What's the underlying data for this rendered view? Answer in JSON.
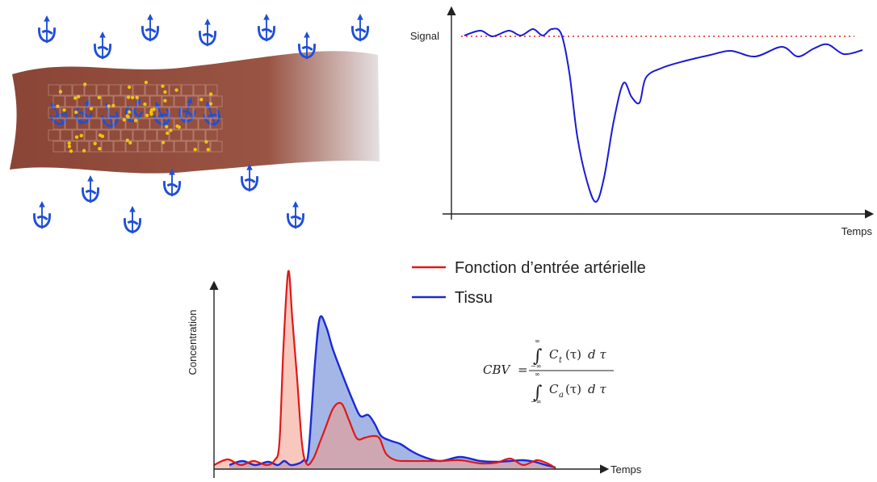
{
  "tissue_panel": {
    "icon": "spin-vector-icon",
    "colors": {
      "tissue": "#8e4a3c",
      "spin": "#1f4fd8",
      "particle": "#f2c300"
    }
  },
  "signal_chart": {
    "ylabel": "Signal",
    "xlabel": "Temps",
    "colors": {
      "signal": "#1a1ad6",
      "baseline": "#e02020"
    }
  },
  "concentration_chart": {
    "ylabel": "Concentration",
    "xlabel": "Temps",
    "colors": {
      "aif": "#e01818",
      "tissue": "#1a2ad6"
    }
  },
  "legend": {
    "items": [
      {
        "label": "Fonction d’entrée artérielle",
        "color": "#e01818"
      },
      {
        "label": "Tissu",
        "color": "#1a2ad6"
      }
    ]
  },
  "formula": {
    "lhs": "CBV",
    "eq": "=",
    "integral": "∫",
    "lim_upper": "∞",
    "lim_lower": "−∞",
    "num_fn": "C",
    "num_sub": "t",
    "den_fn": "C",
    "den_sub": "a",
    "arg": "(τ)",
    "diff": "d τ"
  }
}
